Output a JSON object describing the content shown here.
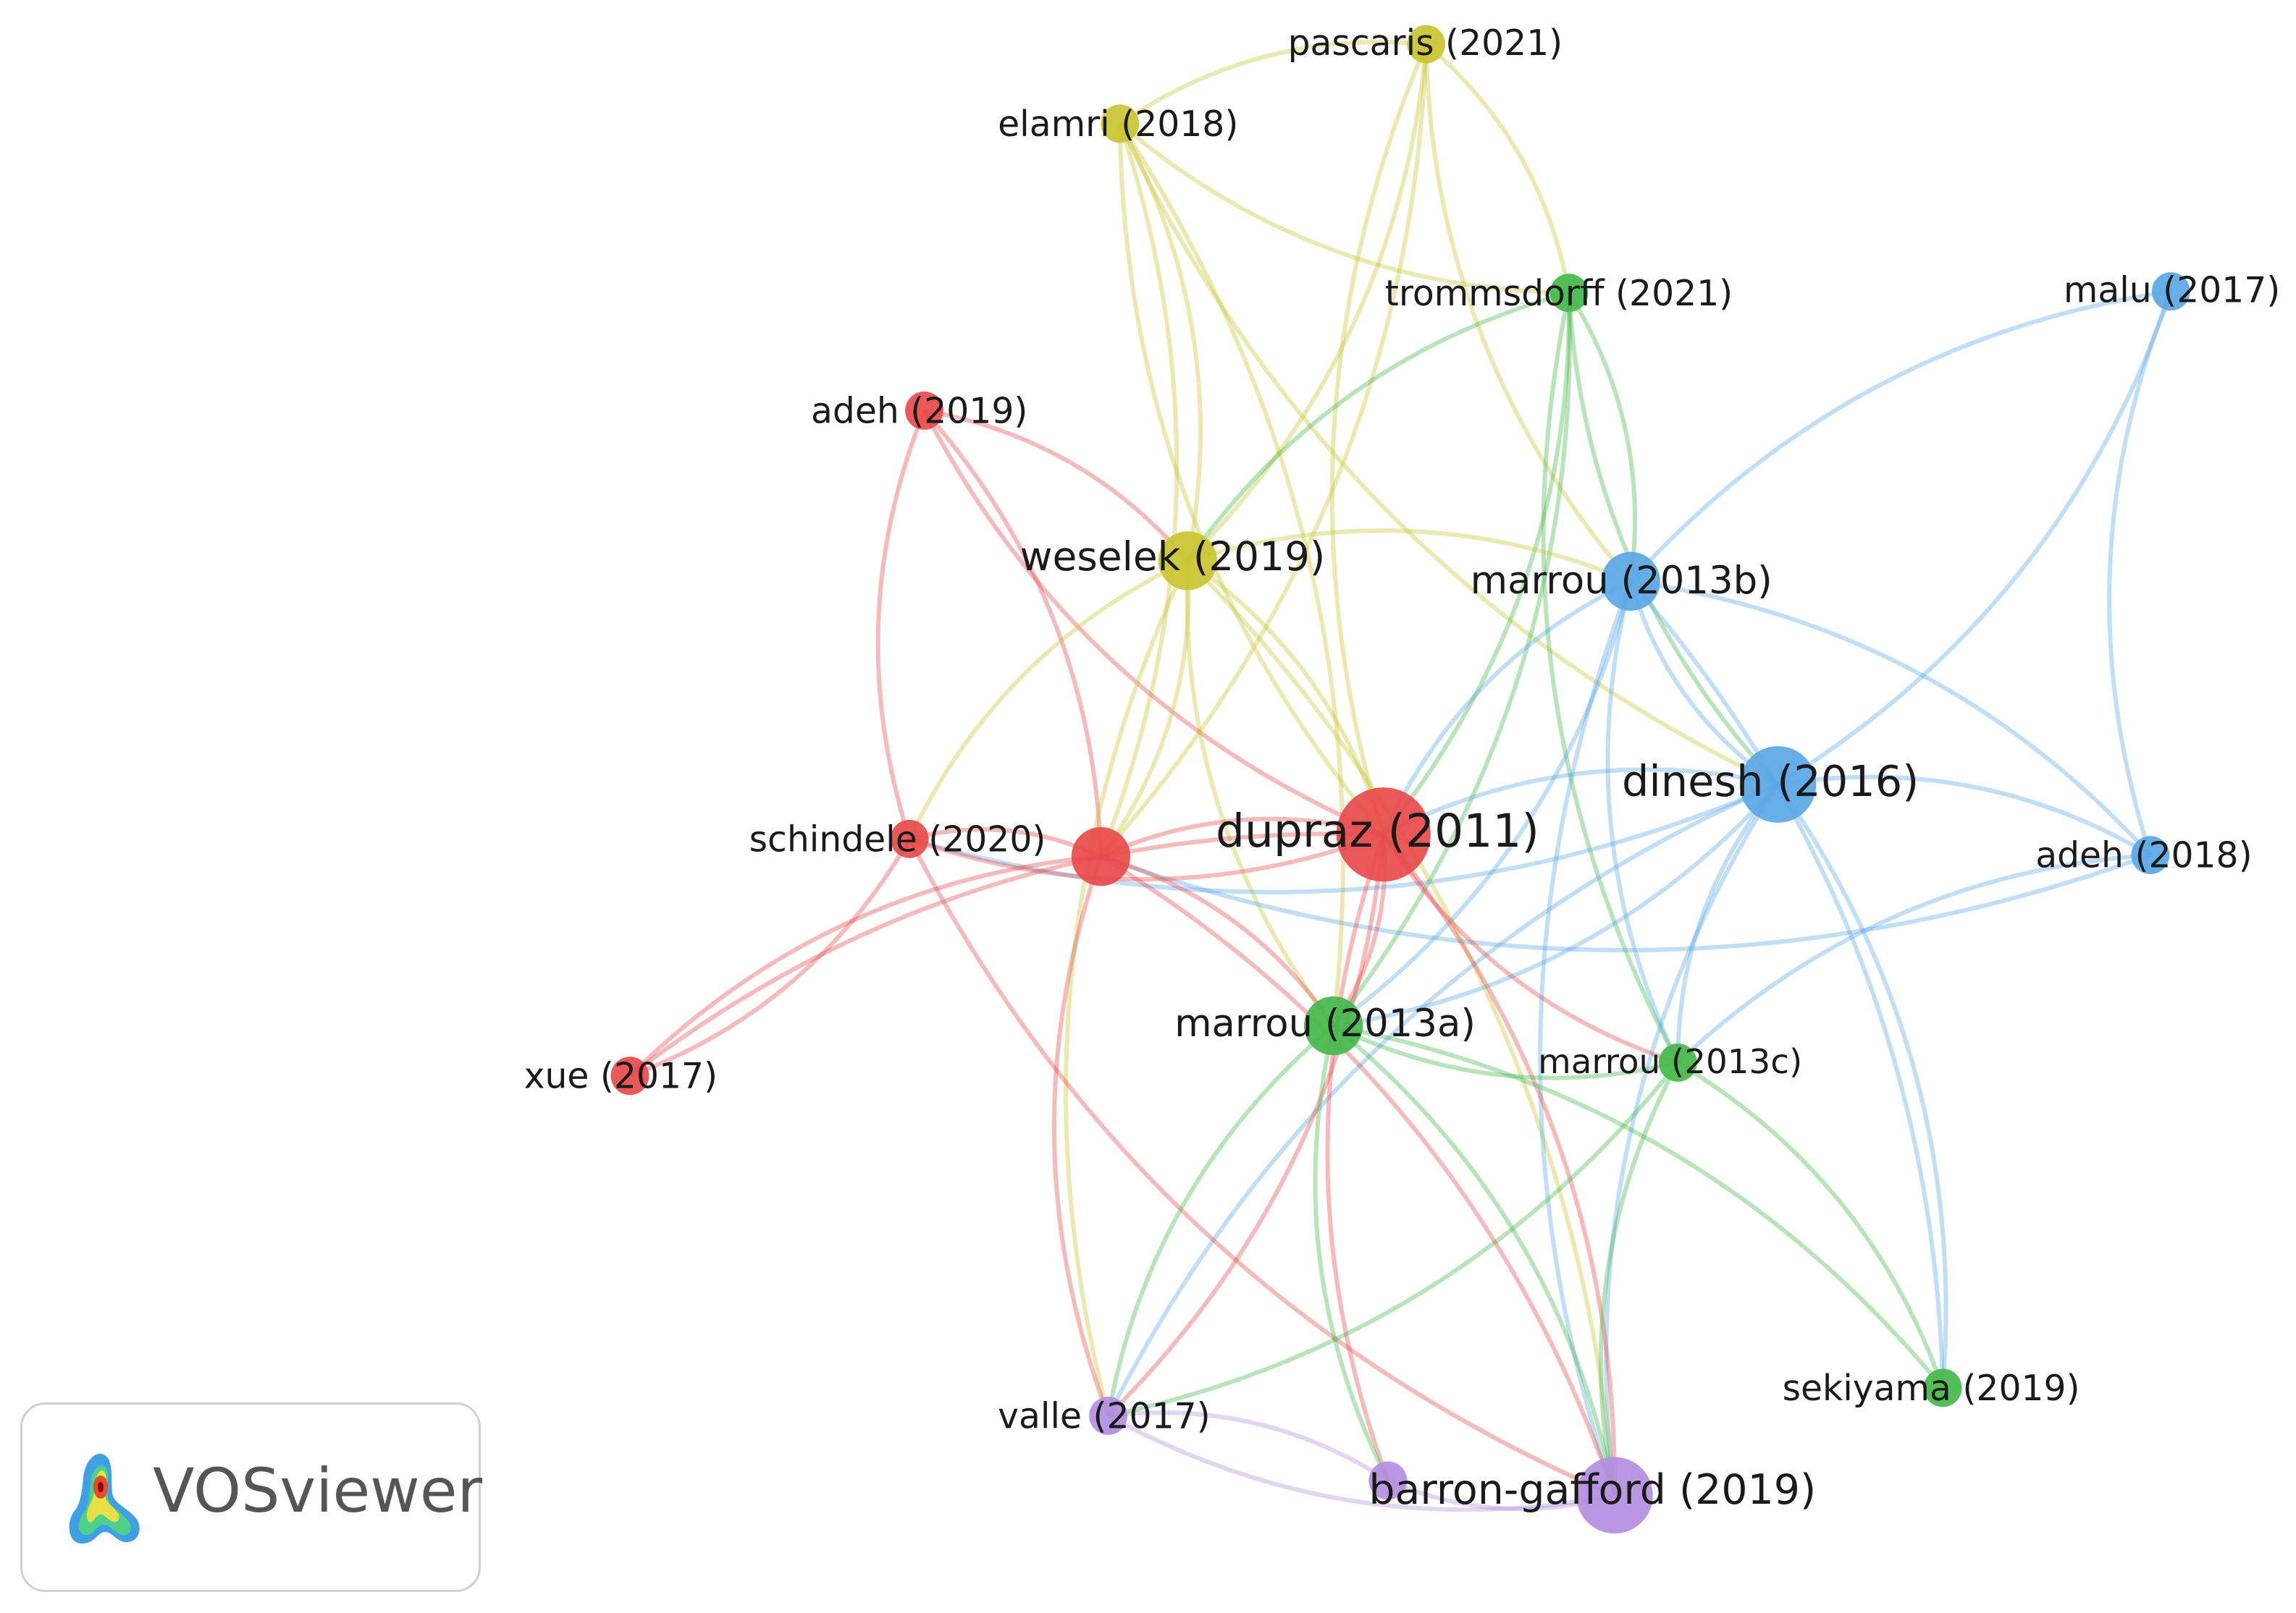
{
  "brand": {
    "name": "VOSviewer",
    "logo_icon": "vosviewer-heatmap-logo-icon"
  },
  "clusters": {
    "red": "#e84a4a",
    "yellow": "#c9c531",
    "green": "#44b84a",
    "blue": "#5aa7e6",
    "purple": "#b48ee0"
  },
  "nodes": [
    {
      "id": "pascaris2021",
      "label": "pascaris (2021)",
      "cluster": "yellow",
      "weight": 1
    },
    {
      "id": "elamri2018",
      "label": "elamri (2018)",
      "cluster": "yellow",
      "weight": 1
    },
    {
      "id": "trommsdorff2021",
      "label": "trommsdorff (2021)",
      "cluster": "green",
      "weight": 1
    },
    {
      "id": "malu2017",
      "label": "malu (2017)",
      "cluster": "blue",
      "weight": 1
    },
    {
      "id": "adeh2019",
      "label": "adeh (2019)",
      "cluster": "red",
      "weight": 1
    },
    {
      "id": "weselek2019",
      "label": "weselek (2019)",
      "cluster": "yellow",
      "weight": 3
    },
    {
      "id": "marrou2013b",
      "label": "marrou (2013b)",
      "cluster": "blue",
      "weight": 3
    },
    {
      "id": "dinesh2016",
      "label": "dinesh (2016)",
      "cluster": "blue",
      "weight": 4
    },
    {
      "id": "adeh2018",
      "label": "adeh (2018)",
      "cluster": "blue",
      "weight": 1
    },
    {
      "id": "schindele2020",
      "label": "schindele (2020)",
      "cluster": "red",
      "weight": 1
    },
    {
      "id": "unlabeled_red",
      "label": "",
      "cluster": "red",
      "weight": 3
    },
    {
      "id": "dupraz2011",
      "label": "dupraz (2011)",
      "cluster": "red",
      "weight": 5
    },
    {
      "id": "marrou2013a",
      "label": "marrou (2013a)",
      "cluster": "green",
      "weight": 3
    },
    {
      "id": "marrou2013c",
      "label": "marrou (2013c)",
      "cluster": "green",
      "weight": 1
    },
    {
      "id": "xue2017",
      "label": "xue (2017)",
      "cluster": "red",
      "weight": 1
    },
    {
      "id": "sekiyama2019",
      "label": "sekiyama (2019)",
      "cluster": "green",
      "weight": 1
    },
    {
      "id": "valle2017",
      "label": "valle (2017)",
      "cluster": "purple",
      "weight": 1
    },
    {
      "id": "unlabeled_purple",
      "label": "",
      "cluster": "purple",
      "weight": 1
    },
    {
      "id": "barrongafford2019",
      "label": "barron-gafford (2019)",
      "cluster": "purple",
      "weight": 4
    }
  ],
  "links": [
    [
      "pascaris2021",
      "elamri2018"
    ],
    [
      "pascaris2021",
      "trommsdorff2021"
    ],
    [
      "pascaris2021",
      "dupraz2011"
    ],
    [
      "pascaris2021",
      "weselek2019"
    ],
    [
      "pascaris2021",
      "marrou2013b"
    ],
    [
      "pascaris2021",
      "unlabeled_red"
    ],
    [
      "elamri2018",
      "trommsdorff2021"
    ],
    [
      "elamri2018",
      "weselek2019"
    ],
    [
      "elamri2018",
      "dupraz2011"
    ],
    [
      "elamri2018",
      "marrou2013a"
    ],
    [
      "elamri2018",
      "dinesh2016"
    ],
    [
      "elamri2018",
      "unlabeled_red"
    ],
    [
      "trommsdorff2021",
      "weselek2019"
    ],
    [
      "trommsdorff2021",
      "marrou2013a"
    ],
    [
      "trommsdorff2021",
      "marrou2013c"
    ],
    [
      "trommsdorff2021",
      "dupraz2011"
    ],
    [
      "trommsdorff2021",
      "dinesh2016"
    ],
    [
      "trommsdorff2021",
      "marrou2013b"
    ],
    [
      "malu2017",
      "marrou2013b"
    ],
    [
      "malu2017",
      "dinesh2016"
    ],
    [
      "malu2017",
      "adeh2018"
    ],
    [
      "adeh2019",
      "weselek2019"
    ],
    [
      "adeh2019",
      "dupraz2011"
    ],
    [
      "adeh2019",
      "unlabeled_red"
    ],
    [
      "adeh2019",
      "schindele2020"
    ],
    [
      "weselek2019",
      "dupraz2011"
    ],
    [
      "weselek2019",
      "marrou2013a"
    ],
    [
      "weselek2019",
      "unlabeled_red"
    ],
    [
      "weselek2019",
      "schindele2020"
    ],
    [
      "weselek2019",
      "marrou2013b"
    ],
    [
      "weselek2019",
      "valle2017"
    ],
    [
      "weselek2019",
      "barrongafford2019"
    ],
    [
      "marrou2013b",
      "dinesh2016"
    ],
    [
      "marrou2013b",
      "adeh2018"
    ],
    [
      "marrou2013b",
      "dupraz2011"
    ],
    [
      "marrou2013b",
      "marrou2013a"
    ],
    [
      "marrou2013b",
      "marrou2013c"
    ],
    [
      "marrou2013b",
      "sekiyama2019"
    ],
    [
      "marrou2013b",
      "barrongafford2019"
    ],
    [
      "dinesh2016",
      "adeh2018"
    ],
    [
      "dinesh2016",
      "dupraz2011"
    ],
    [
      "dinesh2016",
      "marrou2013a"
    ],
    [
      "dinesh2016",
      "marrou2013c"
    ],
    [
      "dinesh2016",
      "sekiyama2019"
    ],
    [
      "dinesh2016",
      "barrongafford2019"
    ],
    [
      "dinesh2016",
      "schindele2020"
    ],
    [
      "dinesh2016",
      "valle2017"
    ],
    [
      "adeh2018",
      "unlabeled_red"
    ],
    [
      "adeh2018",
      "marrou2013c"
    ],
    [
      "schindele2020",
      "unlabeled_red"
    ],
    [
      "schindele2020",
      "dupraz2011"
    ],
    [
      "schindele2020",
      "xue2017"
    ],
    [
      "schindele2020",
      "barrongafford2019"
    ],
    [
      "unlabeled_red",
      "dupraz2011"
    ],
    [
      "unlabeled_red",
      "xue2017"
    ],
    [
      "unlabeled_red",
      "marrou2013a"
    ],
    [
      "unlabeled_red",
      "valle2017"
    ],
    [
      "unlabeled_red",
      "barrongafford2019"
    ],
    [
      "dupraz2011",
      "xue2017"
    ],
    [
      "dupraz2011",
      "marrou2013a"
    ],
    [
      "dupraz2011",
      "marrou2013c"
    ],
    [
      "dupraz2011",
      "barrongafford2019"
    ],
    [
      "dupraz2011",
      "unlabeled_purple"
    ],
    [
      "dupraz2011",
      "valle2017"
    ],
    [
      "marrou2013a",
      "marrou2013c"
    ],
    [
      "marrou2013a",
      "sekiyama2019"
    ],
    [
      "marrou2013a",
      "valle2017"
    ],
    [
      "marrou2013a",
      "barrongafford2019"
    ],
    [
      "marrou2013a",
      "unlabeled_purple"
    ],
    [
      "marrou2013c",
      "sekiyama2019"
    ],
    [
      "marrou2013c",
      "barrongafford2019"
    ],
    [
      "marrou2013c",
      "valle2017"
    ],
    [
      "valle2017",
      "barrongafford2019"
    ],
    [
      "valle2017",
      "unlabeled_purple"
    ],
    [
      "unlabeled_purple",
      "barrongafford2019"
    ]
  ]
}
